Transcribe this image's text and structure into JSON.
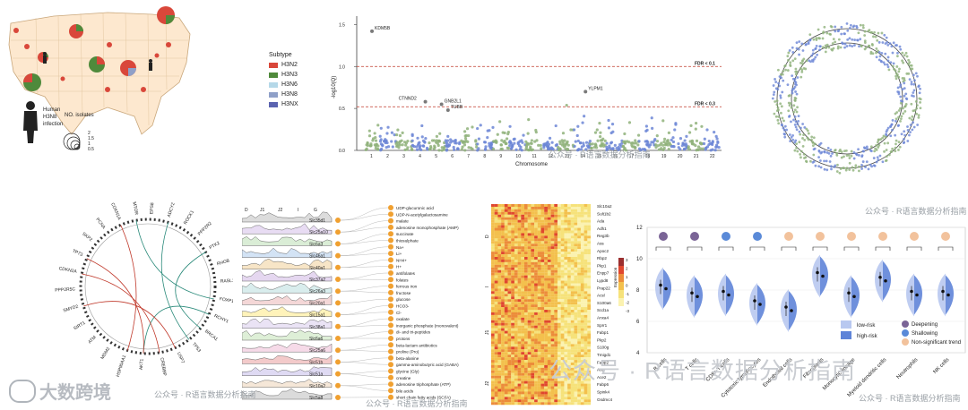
{
  "map_panel": {
    "human_label": [
      "Human",
      "H3N8",
      "infection"
    ],
    "isolates_title": "NO. isolates",
    "isolate_sizes": [
      "2",
      "1.5",
      "1",
      "0.5"
    ],
    "subtype_title": "Subtype",
    "subtypes": [
      {
        "name": "H3N2",
        "color": "#d9473a"
      },
      {
        "name": "H3N3",
        "color": "#4f8a3b"
      },
      {
        "name": "H3N6",
        "color": "#b5d8e8"
      },
      {
        "name": "H3N8",
        "color": "#8fa0c8"
      },
      {
        "name": "H3NX",
        "color": "#5b63b0"
      }
    ]
  },
  "manhattan": {
    "ylabel": "-log10(Q)",
    "xlabel": "Chromosome",
    "y_ticks": [
      "0.0",
      "0.5",
      "1.0",
      "1.5"
    ],
    "x_ticks": [
      "1",
      "2",
      "3",
      "4",
      "5",
      "6",
      "7",
      "8",
      "9",
      "10",
      "11",
      "12",
      "13",
      "14",
      "15",
      "16",
      "17",
      "18",
      "19",
      "20",
      "21",
      "22"
    ],
    "thresholds": [
      {
        "label": "FDR < 0.1",
        "value": 1.0
      },
      {
        "label": "FDR < 0.3",
        "value": 0.52
      }
    ],
    "genes": [
      "KDM5B",
      "CTNND2",
      "GNB2L1",
      "TUBB",
      "YLPM1"
    ]
  },
  "circos_panel": {
    "genes": [
      "MTOR",
      "EPS8",
      "ADCY2",
      "ROCK1",
      "PPP2R2",
      "PTK2",
      "RHOB",
      "RASL12",
      "FOXP1",
      "RCHY1",
      "BRCA1",
      "TP53",
      "USP7",
      "CREBBP",
      "AKT1",
      "HSP90AA1",
      "MDM2",
      "ATM",
      "SIRT1",
      "SMYD2",
      "PPP2R5C",
      "CDKN2A",
      "TP73",
      "SKP2",
      "PCNA",
      "CDKN1A"
    ]
  },
  "density_panel": {
    "columns": [
      "D",
      "J1",
      "J2",
      "I",
      "G"
    ],
    "genes": [
      "Slc35d1",
      "Slc25a10",
      "Slc6a3",
      "Slc46a1",
      "Slc40a1",
      "Slc37a2",
      "Slc26a3",
      "Slc20a1",
      "Slc15a1",
      "Slc38a1",
      "Slc6a6",
      "Slc25a6",
      "Slc51b",
      "Slc51a",
      "Slc10a2",
      "Slc5a8"
    ],
    "metabolites": [
      "UDP-glucuronic acid",
      "UDP-N-acetylgalactosamine",
      "malate",
      "adenosine monophosphate (AMP)",
      "succinate",
      "thiosulphate",
      "Na+",
      "Li+",
      "NH4+",
      "H+",
      "antifolates",
      "folates",
      "ferrous iron",
      "fructose",
      "glucose",
      "HCO3-",
      "Cl-",
      "oxalate",
      "inorganic phosphate (monovalent)",
      "di- and tri-peptides",
      "protons",
      "beta-lactam antibiotics",
      "proline (Pro)",
      "beta-alanine",
      "gamma-aminobutyric acid (GABA)",
      "glycine (Gly)",
      "creatine",
      "adenosine triphosphate (ATP)",
      "bile acids",
      "short chain fatty acids (SCFA)"
    ]
  },
  "heatmap_panel": {
    "row_groups": [
      "D",
      "I",
      "J1",
      "J2"
    ],
    "genes": [
      "Slc10a2",
      "Sult1b2",
      "Ada",
      "Adh1",
      "Reg3b",
      "Ass",
      "Apoc2",
      "Rbp2",
      "Pkp1",
      "Enpp7",
      "Lypd8",
      "Prap22",
      "Acsl",
      "S100a6",
      "Scd1a",
      "Anxa4",
      "Sprr1",
      "Fabp1",
      "Pkp2",
      "S100g",
      "Tmigd1",
      "Fabp2",
      "Ace",
      "Ace2",
      "Fabp6",
      "Spink4",
      "Gsdmc4"
    ],
    "legend_title": "Expression",
    "legend_ticks": [
      "3",
      "2",
      "1",
      "0",
      "-1",
      "-2",
      "-3"
    ]
  },
  "violin_panel": {
    "y_ticks": [
      "12",
      "10",
      "8",
      "6",
      "4"
    ],
    "categories": [
      "B cells",
      "T cells",
      "CD8+ T cells",
      "Cytotoxic lymphocytes",
      "Endothelial cells",
      "Fibroblasts",
      "Monocytic lineage",
      "Myeloid dendritic cells",
      "Neutrophils",
      "NK cells"
    ],
    "risk_legend": [
      {
        "label": "low-risk",
        "color": "#b8c8f0"
      },
      {
        "label": "high-risk",
        "color": "#5f84d8"
      }
    ],
    "trend_legend": [
      {
        "label": "Deepening",
        "color": "#7a6496"
      },
      {
        "label": "Shallowing",
        "color": "#5a8ad8"
      },
      {
        "label": "Non-significant trend",
        "color": "#f2c29c"
      }
    ],
    "trend_colors": [
      "#7a6496",
      "#7a6496",
      "#5a8ad8",
      "#5a8ad8",
      "#f2c29c",
      "#f2c29c",
      "#f2c29c",
      "#f2c29c",
      "#f2c29c",
      "#f2c29c"
    ]
  },
  "watermarks": {
    "small": "公众号 · R语言数据分析指南",
    "large": "公众号 · R语言数据分析指南",
    "logo": "大数跨境"
  }
}
